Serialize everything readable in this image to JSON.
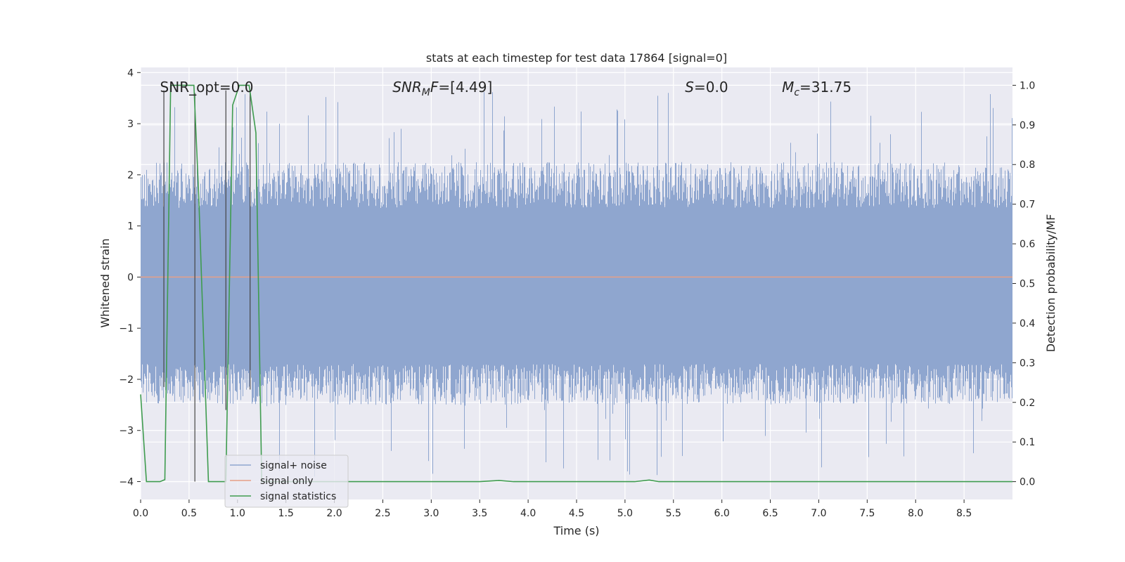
{
  "chart_data": {
    "type": "line",
    "title": "stats at each timestep for test data 17864 [signal=0]",
    "xlabel": "Time (s)",
    "ylabel": "Whitened strain",
    "y2label": "Detection probability/MF",
    "xlim": [
      0.0,
      9.0
    ],
    "ylim": [
      -4.35,
      4.1
    ],
    "y2lim": [
      -0.045,
      1.045
    ],
    "xticks": [
      "0.0",
      "0.5",
      "1.0",
      "1.5",
      "2.0",
      "2.5",
      "3.0",
      "3.5",
      "4.0",
      "4.5",
      "5.0",
      "5.5",
      "6.0",
      "6.5",
      "7.0",
      "7.5",
      "8.0",
      "8.5"
    ],
    "yticks": [
      "−4",
      "−3",
      "−2",
      "−1",
      "0",
      "1",
      "2",
      "3",
      "4"
    ],
    "y2ticks": [
      "0.0",
      "0.1",
      "0.2",
      "0.3",
      "0.4",
      "0.5",
      "0.6",
      "0.7",
      "0.8",
      "0.9",
      "1.0"
    ],
    "grid": true,
    "legend_position": "lower left",
    "annotations": [
      {
        "prefix": "SNR_opt=0.0",
        "sub": "",
        "suffix": "",
        "x": 0.2,
        "y": 3.7,
        "italic": false
      },
      {
        "prefix": "SNR",
        "sub": "M",
        "suffix": "F=[4.49]",
        "x": 2.6,
        "y": 3.7,
        "italic": true
      },
      {
        "prefix": "S",
        "sub": "",
        "suffix": "=0.0",
        "x": 5.62,
        "y": 3.7,
        "italic": true
      },
      {
        "prefix": "M",
        "sub": "c",
        "suffix": "=31.75",
        "x": 6.62,
        "y": 3.7,
        "italic": true
      }
    ],
    "series": [
      {
        "name": "signal+ noise",
        "color": "#8fa6cf",
        "description_kind": "noise",
        "band_low": -1.7,
        "band_high": 1.35,
        "peak_max": 3.65,
        "peak_min": -4.0
      },
      {
        "name": "signal only",
        "color": "#e69f86",
        "x": [
          0.0,
          9.0
        ],
        "y": [
          0.0,
          0.0
        ]
      },
      {
        "name": "signal statistics",
        "color": "#3f9c4f",
        "axis": "right",
        "x": [
          0.0,
          0.06,
          0.2,
          0.25,
          0.31,
          0.55,
          0.6,
          0.7,
          0.88,
          0.95,
          1.02,
          1.12,
          1.19,
          1.25,
          1.35,
          3.5,
          3.7,
          3.85,
          5.1,
          5.25,
          5.35,
          9.0
        ],
        "y": [
          0.22,
          0.0,
          0.0,
          0.005,
          1.0,
          1.0,
          0.72,
          0.0,
          0.0,
          0.95,
          1.0,
          1.0,
          0.88,
          0.0,
          0.0,
          0.0,
          0.003,
          0.0,
          0.0,
          0.004,
          0.0,
          0.0
        ]
      }
    ],
    "vertical_markers": [
      {
        "x": 0.24,
        "y_top": 3.65,
        "y_bottom": -2.15
      },
      {
        "x": 0.56,
        "y_top": 3.6,
        "y_bottom": -4.0
      },
      {
        "x": 0.88,
        "y_top": 3.65,
        "y_bottom": -2.6
      },
      {
        "x": 1.13,
        "y_top": 3.65,
        "y_bottom": -2.2
      }
    ]
  }
}
